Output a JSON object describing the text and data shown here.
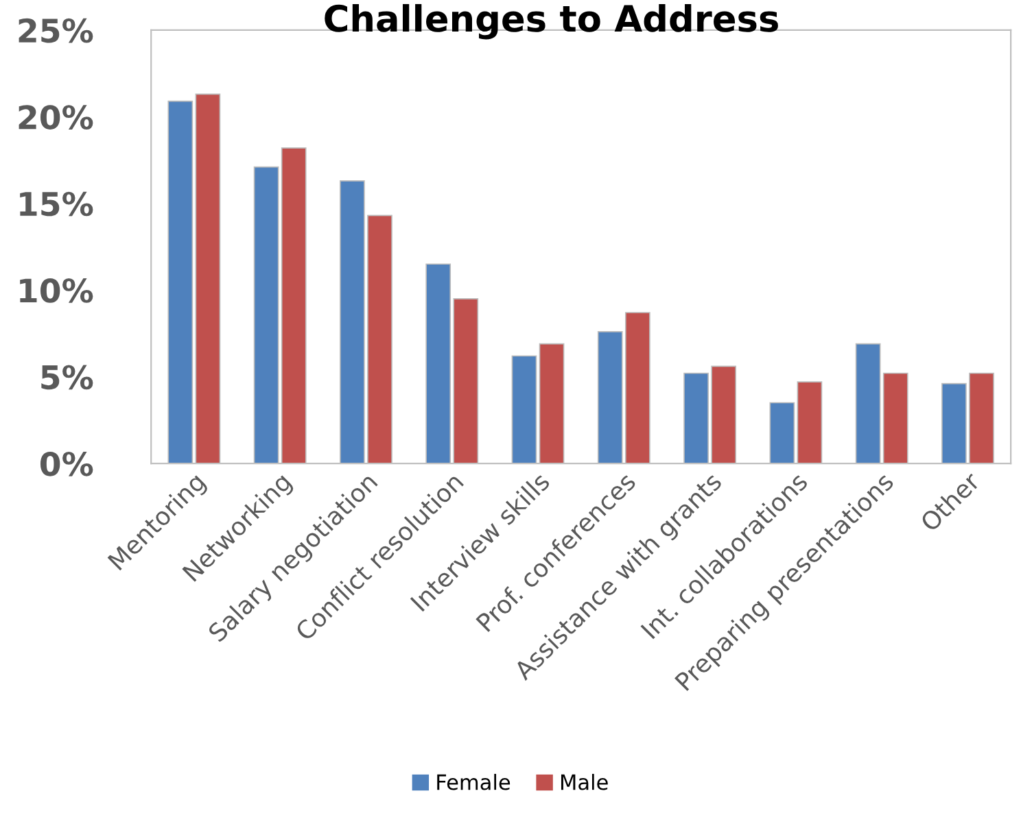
{
  "chart_data": {
    "type": "bar",
    "title": "Challenges to Address",
    "categories": [
      "Mentoring",
      "Networking",
      "Salary negotiation",
      "Conflict resolution",
      "Interview skills",
      "Prof. conferences",
      "Assistance with grants",
      "Int. collaborations",
      "Preparing presentations",
      "Other"
    ],
    "series": [
      {
        "name": "Female",
        "color": "#4f81bd",
        "values": [
          20.9,
          17.1,
          16.3,
          11.5,
          6.2,
          7.6,
          5.2,
          3.5,
          6.9,
          4.6
        ]
      },
      {
        "name": "Male",
        "color": "#c0504d",
        "values": [
          21.3,
          18.2,
          14.3,
          9.5,
          6.9,
          8.7,
          5.6,
          4.7,
          5.2,
          5.2
        ]
      }
    ],
    "ylim": [
      0,
      25
    ],
    "yticks": [
      {
        "value": 0,
        "label": "0%"
      },
      {
        "value": 5,
        "label": "5%"
      },
      {
        "value": 10,
        "label": "10%"
      },
      {
        "value": 15,
        "label": "15%"
      },
      {
        "value": 20,
        "label": "20%"
      },
      {
        "value": 25,
        "label": "25%"
      }
    ],
    "grid": false,
    "legend": "bottom"
  }
}
